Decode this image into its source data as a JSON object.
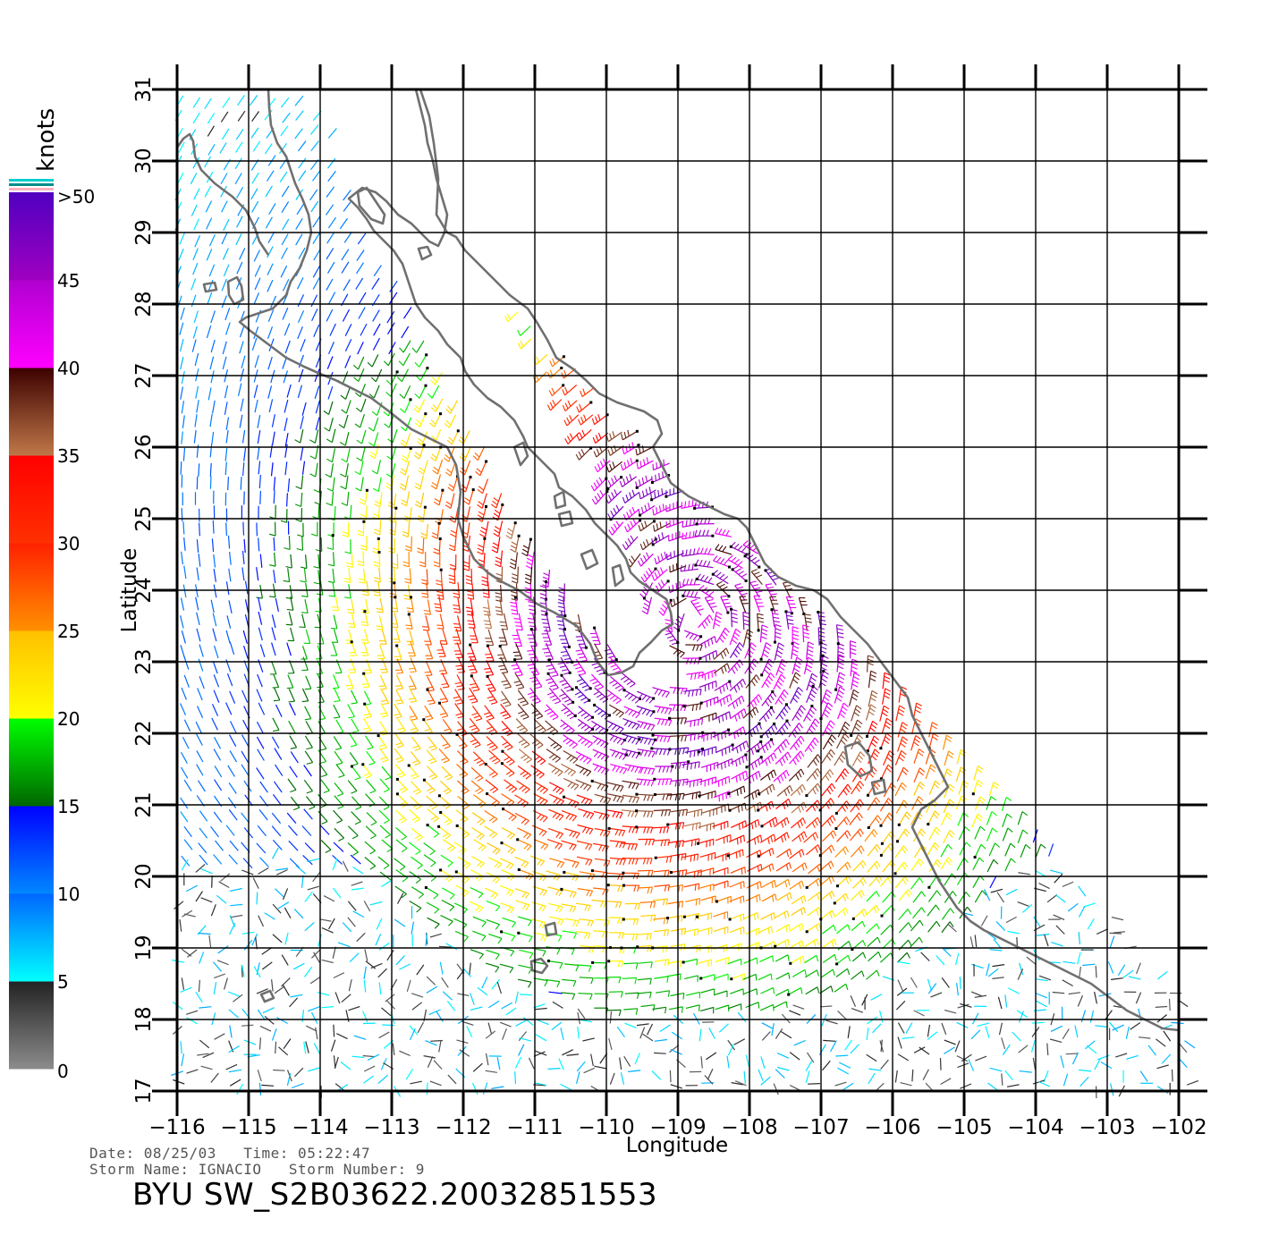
{
  "map": {
    "x_axis": {
      "label": "Longitude",
      "ticks": [
        "-116",
        "-115",
        "-114",
        "-113",
        "-112",
        "-111",
        "-110",
        "-109",
        "-108",
        "-107",
        "-106",
        "-105",
        "-104",
        "-103",
        "-102"
      ],
      "range": [
        -116,
        -101.6
      ]
    },
    "y_axis": {
      "label": "Latitude",
      "ticks": [
        "17",
        "18",
        "19",
        "20",
        "21",
        "22",
        "23",
        "24",
        "25",
        "26",
        "27",
        "28",
        "29",
        "30",
        "31"
      ],
      "range": [
        17,
        31
      ]
    },
    "storm_center": {
      "lon": -108.8,
      "lat": 23.6
    },
    "grid": true
  },
  "colorbar": {
    "unit": "knots",
    "labels": [
      "0",
      "5",
      "10",
      "15",
      "20",
      "25",
      "30",
      "35",
      "40",
      "45",
      ">50"
    ],
    "bands": [
      {
        "min": 0,
        "max": 5,
        "colors": [
          "#8c8c8c",
          "#222222"
        ]
      },
      {
        "min": 5,
        "max": 10,
        "colors": [
          "#00ffff",
          "#0066ff"
        ]
      },
      {
        "min": 10,
        "max": 15,
        "colors": [
          "#0088ff",
          "#0000ff"
        ]
      },
      {
        "min": 15,
        "max": 20,
        "colors": [
          "#006600",
          "#00ff00"
        ]
      },
      {
        "min": 20,
        "max": 25,
        "colors": [
          "#ffff00",
          "#ffc000"
        ]
      },
      {
        "min": 25,
        "max": 30,
        "colors": [
          "#ff9000",
          "#ff2000"
        ]
      },
      {
        "min": 30,
        "max": 35,
        "colors": [
          "#ff3000",
          "#ff0000"
        ]
      },
      {
        "min": 35,
        "max": 40,
        "colors": [
          "#c07848",
          "#3c0000"
        ]
      },
      {
        "min": 40,
        "max": 45,
        "colors": [
          "#ff00ff",
          "#b000d0"
        ]
      },
      {
        "min": 45,
        "max": 50,
        "colors": [
          "#a000c0",
          "#5000c0"
        ]
      }
    ]
  },
  "info": {
    "date_line": "Date: 08/25/03   Time: 05:22:47",
    "storm_line": "Storm Name: IGNACIO   Storm Number: 9",
    "file_id": "BYU SW_S2B03622.20032851553"
  }
}
